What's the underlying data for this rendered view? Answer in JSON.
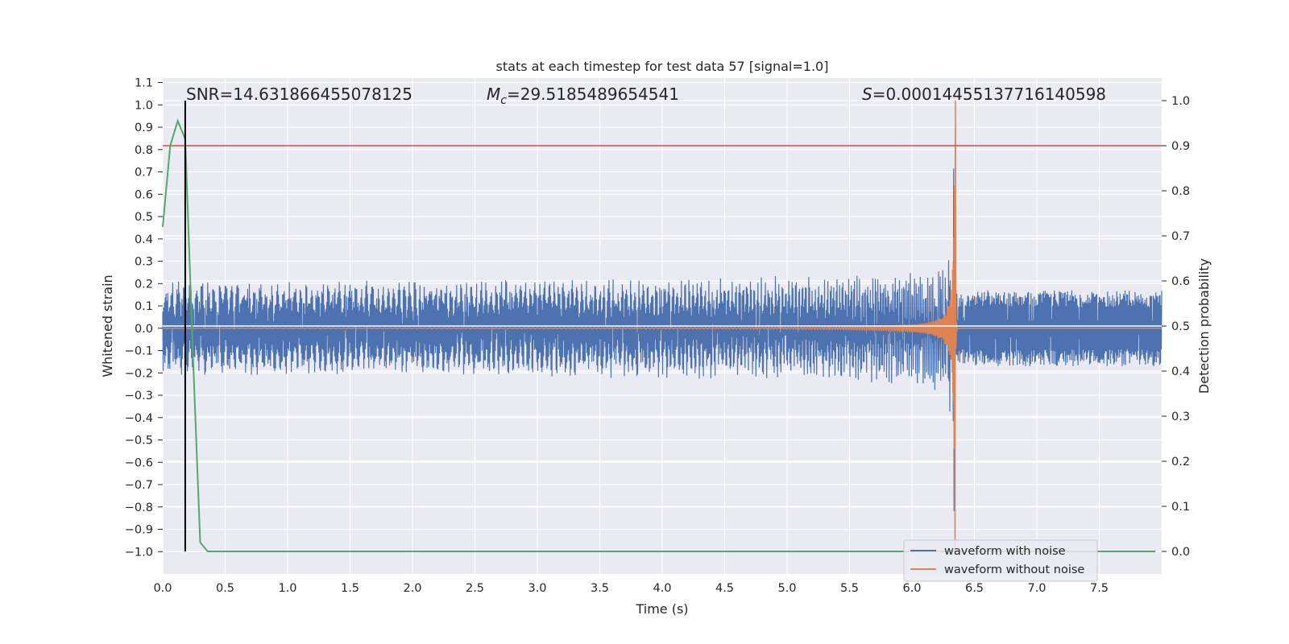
{
  "chart_data": {
    "type": "line",
    "title": "stats at each timestep for test data 57 [signal=1.0]",
    "xlabel": "Time (s)",
    "ylabel": "Whitened strain",
    "ylabel_right": "Detection probability",
    "xlim": [
      0.0,
      8.0
    ],
    "ylim": [
      -1.1,
      1.12
    ],
    "ylim_right": [
      -0.05,
      1.05
    ],
    "xticks": [
      "0.0",
      "0.5",
      "1.0",
      "1.5",
      "2.0",
      "2.5",
      "3.0",
      "3.5",
      "4.0",
      "4.5",
      "5.0",
      "5.5",
      "6.0",
      "6.5",
      "7.0",
      "7.5"
    ],
    "yticks": [
      "1.1",
      "1.0",
      "0.9",
      "0.8",
      "0.7",
      "0.6",
      "0.5",
      "0.4",
      "0.3",
      "0.2",
      "0.1",
      "0.0",
      "−0.1",
      "−0.2",
      "−0.3",
      "−0.4",
      "−0.5",
      "−0.6",
      "−0.7",
      "−0.8",
      "−0.9",
      "−1.0"
    ],
    "yticks_right": [
      "1.0",
      "0.9",
      "0.8",
      "0.7",
      "0.6",
      "0.5",
      "0.4",
      "0.3",
      "0.2",
      "0.1",
      "0.0"
    ],
    "grid": true,
    "legend_position": "bottom-right",
    "annotations": {
      "snr": "SNR=14.631866455078125",
      "mc_symbol": "M",
      "mc_sub": "c",
      "mc_value": "=29.5185489654541",
      "s_symbol": "S",
      "s_value": "=0.00014455137716140598"
    },
    "series": [
      {
        "name": "waveform with noise",
        "color": "#4c72b0",
        "axis": "left",
        "description_values": {
          "noise_amplitude": 0.17,
          "merger_time": 6.35
        }
      },
      {
        "name": "waveform without noise",
        "color": "#dd8452",
        "axis": "left",
        "description_values": {
          "merger_time": 6.35,
          "peak_amplitude": 1.02
        }
      },
      {
        "axis": "right",
        "color": "#55a868",
        "x": [
          0.0,
          0.06,
          0.12,
          0.18,
          0.24,
          0.3,
          0.36,
          0.42,
          7.95
        ],
        "y": [
          0.72,
          0.9,
          0.955,
          0.915,
          0.45,
          0.02,
          0.0,
          0.0,
          0.0
        ]
      }
    ],
    "hlines": [
      {
        "y_right": 0.9,
        "color": "#c44e52"
      },
      {
        "y_right": 0.5,
        "color": "#ffffff"
      }
    ],
    "vlines": [
      {
        "x": 0.18,
        "y_right_range": [
          0.0,
          1.0
        ],
        "color": "#000000"
      }
    ]
  }
}
